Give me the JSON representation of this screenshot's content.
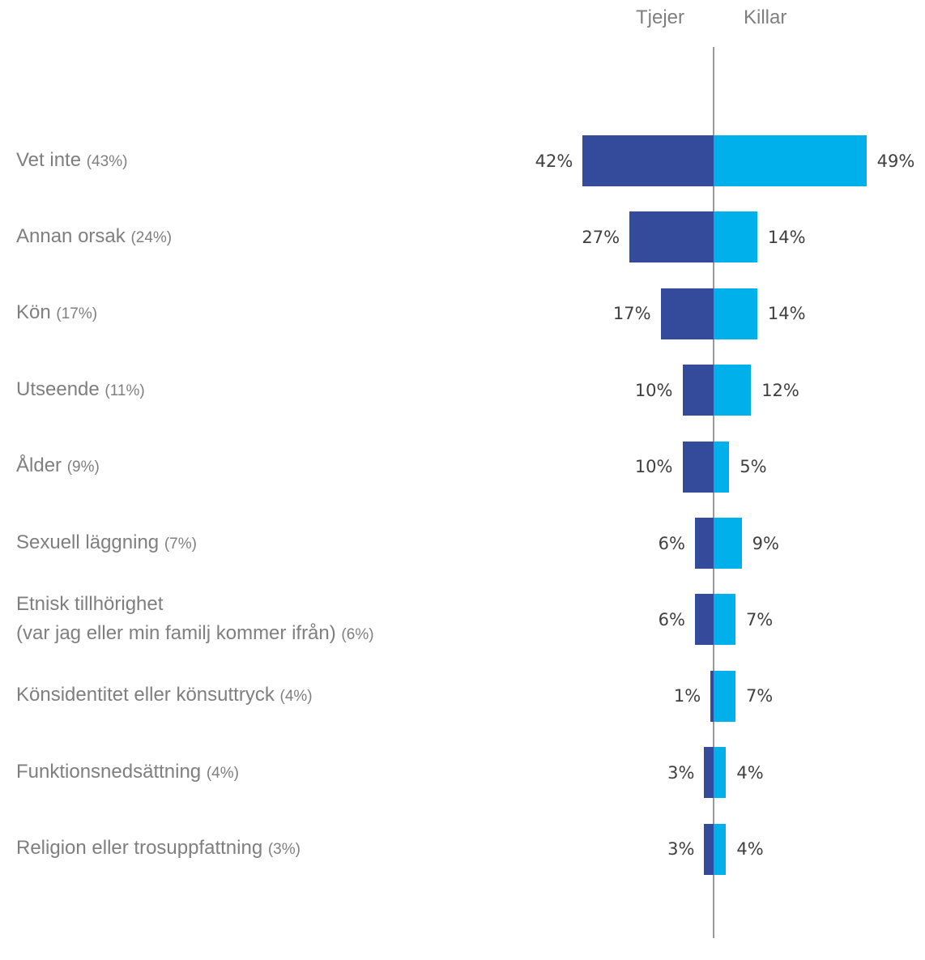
{
  "chart_data": {
    "type": "butterfly",
    "categories": [
      "Vet inte",
      "Annan orsak",
      "Kön",
      "Utseende",
      "Ålder",
      "Sexuell läggning",
      "Etnisk tillhörighet\n(var jag eller min familj kommer ifrån)",
      "Könsidentitet eller könsuttryck",
      "Funktionsnedsättning",
      "Religion eller trosuppfattning"
    ],
    "category_notes": [
      "(43%)",
      "(24%)",
      "(17%)",
      "(11%)",
      "(9%)",
      "(7%)",
      "(6%)",
      "(4%)",
      "(4%)",
      "(3%)"
    ],
    "series": [
      {
        "name": "Tjejer",
        "color": "#344a9a",
        "side": "left",
        "values": [
          42,
          27,
          17,
          10,
          10,
          6,
          6,
          1,
          3,
          3
        ],
        "value_labels": [
          "42%",
          "27%",
          "17%",
          "10%",
          "10%",
          "6%",
          "6%",
          "1%",
          "3%",
          "3%"
        ]
      },
      {
        "name": "Killar",
        "color": "#00b0eb",
        "side": "right",
        "values": [
          49,
          14,
          14,
          12,
          5,
          9,
          7,
          7,
          4,
          4
        ],
        "value_labels": [
          "49%",
          "14%",
          "14%",
          "12%",
          "5%",
          "9%",
          "7%",
          "7%",
          "4%",
          "4%"
        ]
      }
    ]
  }
}
